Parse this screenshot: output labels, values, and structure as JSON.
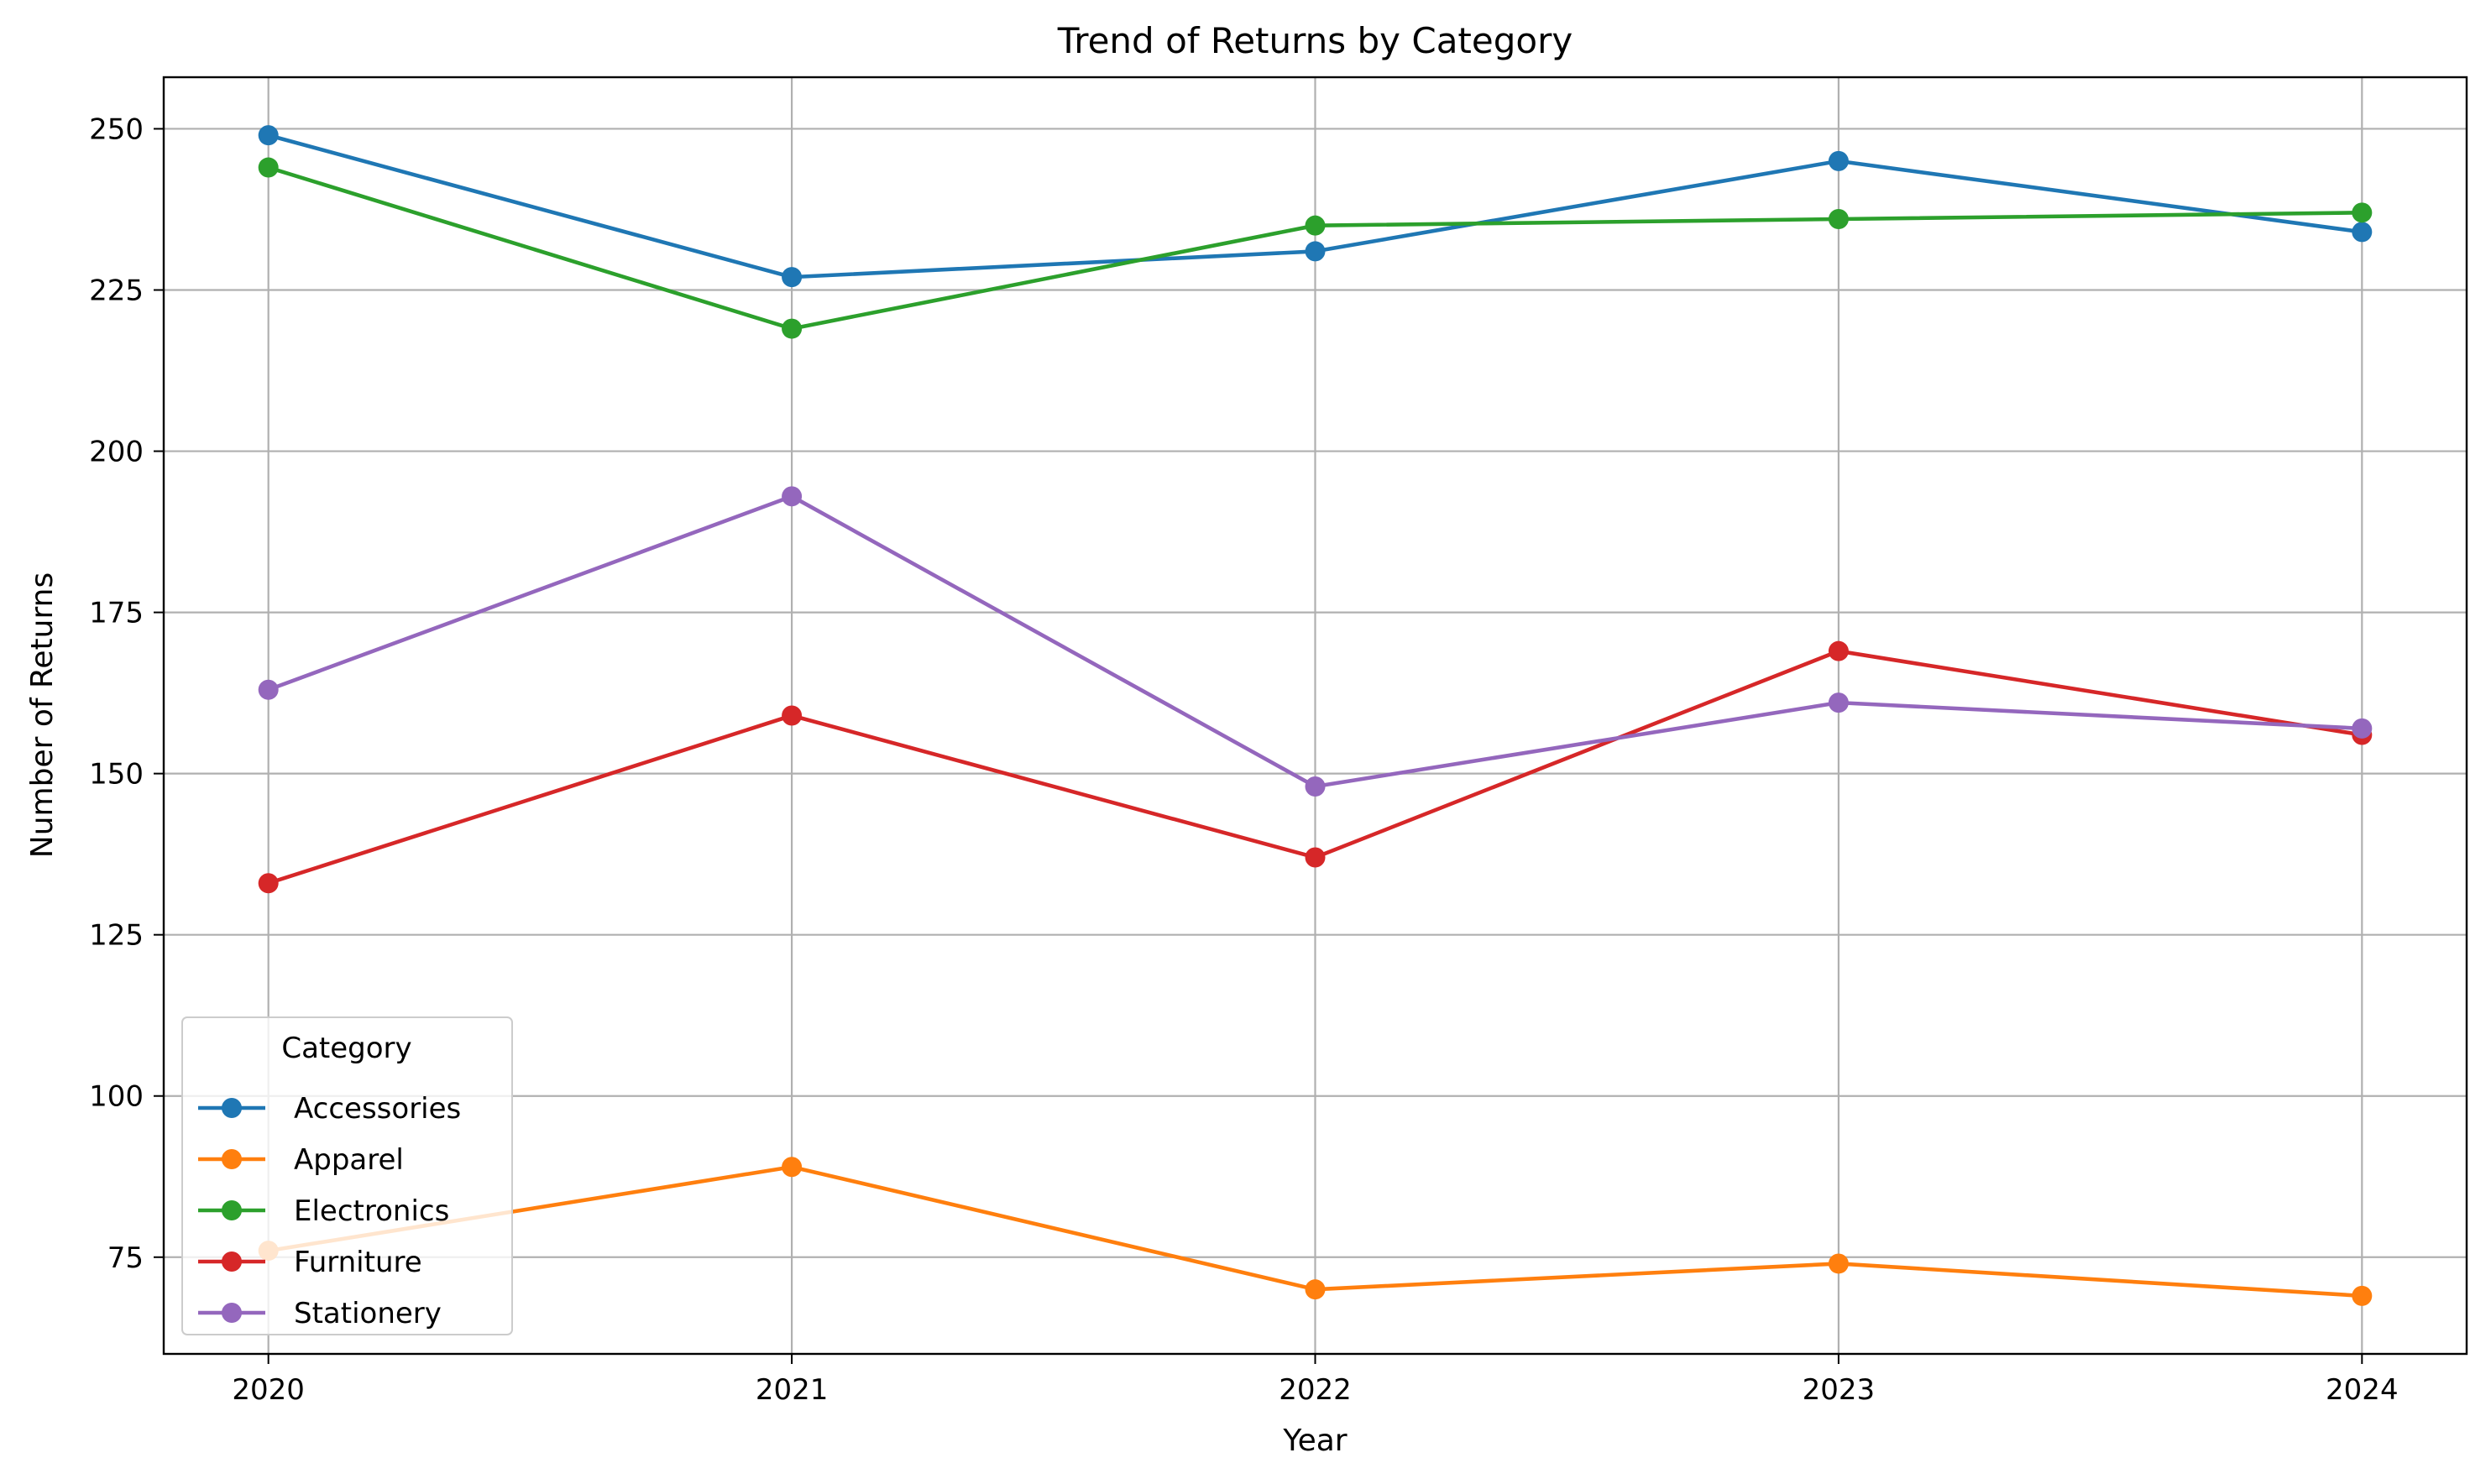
{
  "chart_data": {
    "type": "line",
    "title": "Trend of Returns by Category",
    "xlabel": "Year",
    "ylabel": "Number of Returns",
    "x": [
      2020,
      2021,
      2022,
      2023,
      2024
    ],
    "x_ticks": [
      "2020",
      "2021",
      "2022",
      "2023",
      "2024"
    ],
    "y_ticks": [
      75,
      100,
      125,
      150,
      175,
      200,
      225,
      250
    ],
    "ylim": [
      60,
      258
    ],
    "xlim": [
      2019.8,
      2024.2
    ],
    "grid": true,
    "legend": {
      "title": "Category",
      "placement": "lower-left"
    },
    "series": [
      {
        "name": "Accessories",
        "color": "#1f77b4",
        "values": [
          249,
          227,
          231,
          245,
          234
        ]
      },
      {
        "name": "Apparel",
        "color": "#ff7f0e",
        "values": [
          76,
          89,
          70,
          74,
          69
        ]
      },
      {
        "name": "Electronics",
        "color": "#2ca02c",
        "values": [
          244,
          219,
          235,
          236,
          237
        ]
      },
      {
        "name": "Furniture",
        "color": "#d62728",
        "values": [
          133,
          159,
          137,
          169,
          156
        ]
      },
      {
        "name": "Stationery",
        "color": "#9467bd",
        "values": [
          163,
          193,
          148,
          161,
          157
        ]
      }
    ]
  }
}
